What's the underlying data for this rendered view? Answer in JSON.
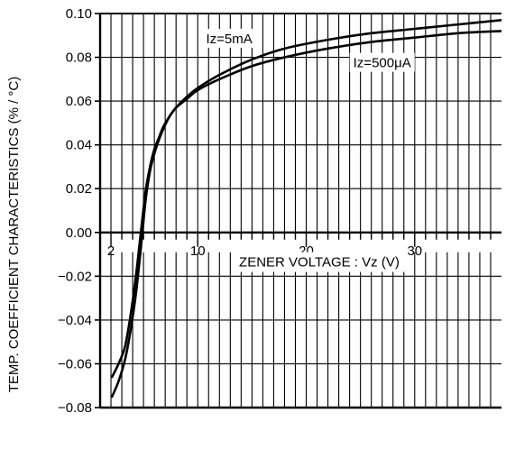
{
  "chart_data": {
    "type": "line",
    "title": "",
    "xlabel": "ZENER VOLTAGE : Vz (V)",
    "ylabel": "TEMP. COEFFICIENT CHARACTERISTICS (% / °C)",
    "xlim": [
      1,
      38
    ],
    "ylim": [
      -0.08,
      0.1
    ],
    "x_major_ticks": [
      2,
      10,
      20,
      30
    ],
    "x_minor_ticks": [
      3,
      4,
      5,
      6,
      7,
      8,
      9,
      11,
      12,
      13,
      14,
      15,
      16,
      17,
      18,
      19,
      21,
      22,
      23,
      24,
      25,
      26,
      27,
      28,
      29,
      31,
      32,
      33,
      34,
      35,
      36,
      37
    ],
    "x_tick_labels": [
      "2",
      "10",
      "20",
      "30"
    ],
    "y_ticks": [
      0.1,
      0.08,
      0.06,
      0.04,
      0.02,
      0.0,
      -0.02,
      -0.04,
      -0.06,
      -0.08
    ],
    "y_tick_labels": [
      "0.10",
      "0.08",
      "0.06",
      "0.04",
      "0.02",
      "0.00",
      "−0.02",
      "−0.04",
      "−0.06",
      "−0.08"
    ],
    "grid": true,
    "series": [
      {
        "name": "Iz=5mA",
        "x": [
          2.1,
          2.7,
          3.3,
          3.8,
          4.3,
          4.8,
          5.2,
          5.6,
          6.0,
          6.4,
          6.8,
          7.4,
          8.0,
          9.0,
          10.0,
          12.0,
          15.0,
          18.0,
          22.0,
          26.0,
          30.0,
          34.0,
          38.0
        ],
        "y": [
          -0.075,
          -0.068,
          -0.058,
          -0.045,
          -0.028,
          -0.005,
          0.015,
          0.028,
          0.036,
          0.042,
          0.047,
          0.053,
          0.057,
          0.062,
          0.066,
          0.072,
          0.079,
          0.084,
          0.088,
          0.091,
          0.093,
          0.095,
          0.097
        ]
      },
      {
        "name": "Iz=500μA",
        "x": [
          2.1,
          2.7,
          3.3,
          3.8,
          4.3,
          4.8,
          5.2,
          5.6,
          6.0,
          6.4,
          6.8,
          7.4,
          8.0,
          9.0,
          10.0,
          12.0,
          15.0,
          18.0,
          22.0,
          26.0,
          30.0,
          34.0,
          38.0
        ],
        "y": [
          -0.066,
          -0.06,
          -0.052,
          -0.038,
          -0.02,
          0.002,
          0.019,
          0.03,
          0.038,
          0.043,
          0.048,
          0.053,
          0.057,
          0.061,
          0.065,
          0.07,
          0.076,
          0.08,
          0.084,
          0.087,
          0.089,
          0.091,
          0.092
        ]
      }
    ],
    "annotations": [
      {
        "text": "Iz=5mA",
        "x": 12.9,
        "y": 0.0885
      },
      {
        "text": "Iz=500μA",
        "x": 27.0,
        "y": 0.0775
      }
    ]
  }
}
